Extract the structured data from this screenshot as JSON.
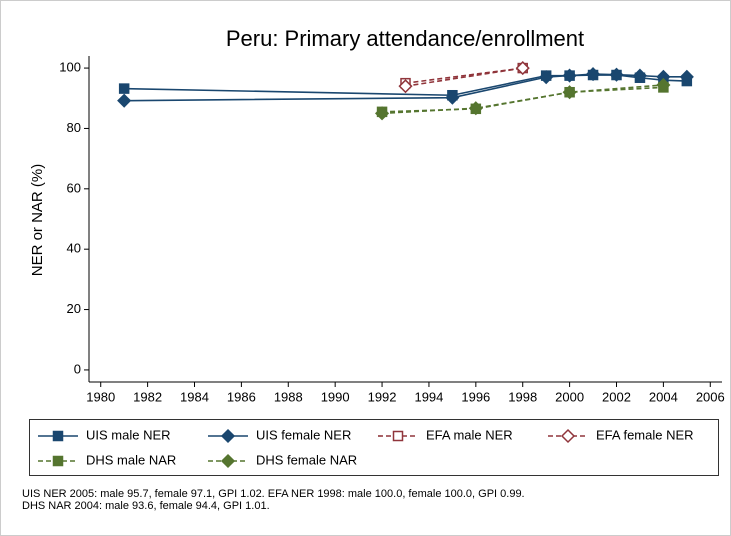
{
  "chart_data": {
    "type": "line",
    "title": "Peru: Primary attendance/enrollment",
    "ylabel": "NER or NAR (%)",
    "xlim": [
      1979.5,
      2006.5
    ],
    "xticks": [
      1980,
      1982,
      1984,
      1986,
      1988,
      1990,
      1992,
      1994,
      1996,
      1998,
      2000,
      2002,
      2004,
      2006
    ],
    "ylim": [
      -4,
      104
    ],
    "yticks": [
      0,
      20,
      40,
      60,
      80,
      100
    ],
    "series": [
      {
        "name": "UIS male NER",
        "color": "#1a476f",
        "marker": "square",
        "filled": true,
        "dashed": false,
        "x": [
          1981,
          1995,
          1999,
          2000,
          2001,
          2002,
          2003,
          2004,
          2005
        ],
        "values": [
          93.2,
          91.0,
          97.5,
          97.5,
          97.7,
          97.7,
          96.8,
          96.0,
          95.7
        ]
      },
      {
        "name": "UIS female NER",
        "color": "#1a476f",
        "marker": "diamond",
        "filled": true,
        "dashed": false,
        "x": [
          1981,
          1995,
          1999,
          2000,
          2001,
          2002,
          2003,
          2004,
          2005
        ],
        "values": [
          89.2,
          90.2,
          97.0,
          97.5,
          98.0,
          97.8,
          97.5,
          97.1,
          97.1
        ]
      },
      {
        "name": "EFA male NER",
        "color": "#90353b",
        "marker": "square",
        "filled": false,
        "dashed": true,
        "x": [
          1993,
          1998
        ],
        "values": [
          95.0,
          100.0
        ]
      },
      {
        "name": "EFA female NER",
        "color": "#90353b",
        "marker": "diamond",
        "filled": false,
        "dashed": true,
        "x": [
          1993,
          1998
        ],
        "values": [
          94.0,
          100.0
        ]
      },
      {
        "name": "DHS male NAR",
        "color": "#55752f",
        "marker": "square",
        "filled": true,
        "dashed": true,
        "x": [
          1992,
          1996,
          2000,
          2004
        ],
        "values": [
          85.5,
          86.5,
          92.0,
          93.6
        ]
      },
      {
        "name": "DHS female NAR",
        "color": "#55752f",
        "marker": "diamond",
        "filled": true,
        "dashed": true,
        "x": [
          1992,
          1996,
          2000,
          2004
        ],
        "values": [
          85.0,
          86.7,
          92.0,
          94.4
        ]
      }
    ],
    "note": [
      "UIS NER 2005: male 95.7, female 97.1, GPI 1.02. EFA NER 1998: male 100.0, female 100.0, GPI 0.99.",
      "DHS NAR 2004: male 93.6, female 94.4, GPI 1.01."
    ]
  }
}
